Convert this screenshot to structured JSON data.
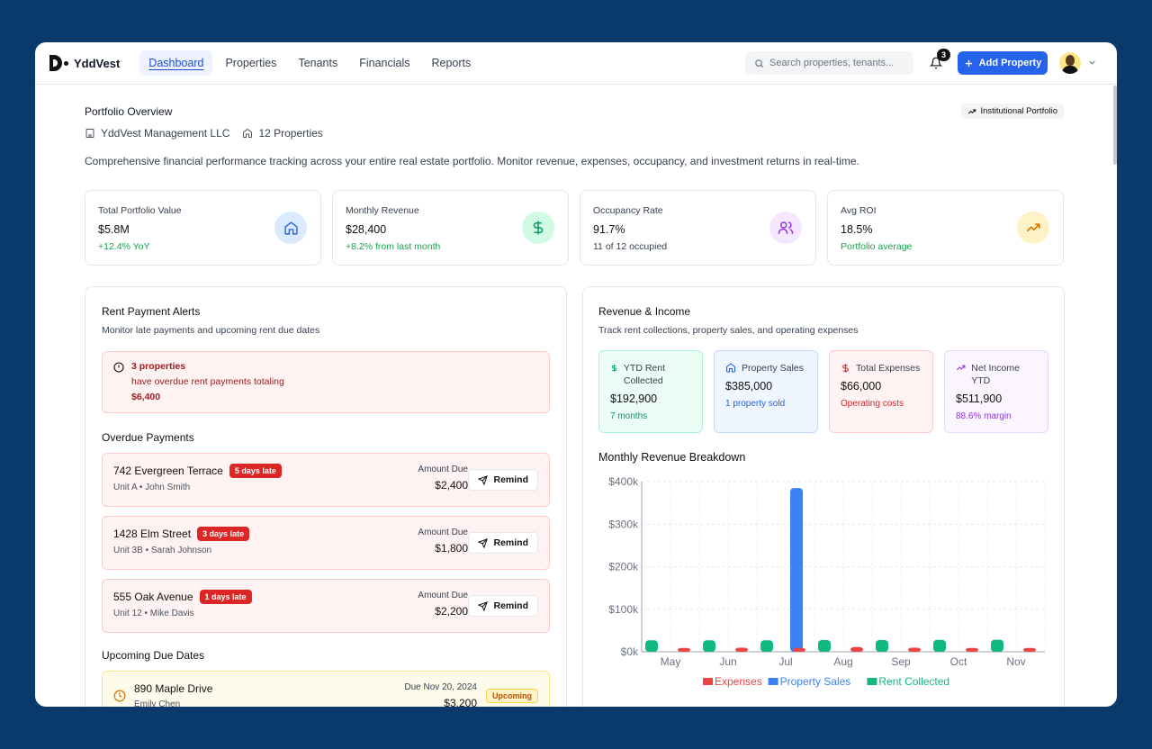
{
  "app": {
    "name": "YddVest"
  },
  "nav": {
    "items": [
      {
        "label": "Dashboard",
        "active": true
      },
      {
        "label": "Properties"
      },
      {
        "label": "Tenants"
      },
      {
        "label": "Financials"
      },
      {
        "label": "Reports"
      }
    ]
  },
  "search": {
    "placeholder": "Search properties, tenants..."
  },
  "notifications": {
    "count": "3"
  },
  "header_actions": {
    "add_property": "Add Property"
  },
  "overview": {
    "title": "Portfolio Overview",
    "pill": "Institutional Portfolio",
    "company": "YddVest Management LLC",
    "properties": "12 Properties",
    "description": "Comprehensive financial performance tracking across your entire real estate portfolio. Monitor revenue, expenses, occupancy, and investment returns in real-time."
  },
  "stats": [
    {
      "label": "Total Portfolio Value",
      "value": "$5.8M",
      "sub": "+12.4% YoY",
      "icon": "home-icon",
      "color": "#2563eb",
      "bg": "#dbeafe",
      "sub_color": "#16a34a"
    },
    {
      "label": "Monthly Revenue",
      "value": "$28,400",
      "sub": "+8.2% from last month",
      "icon": "dollar-icon",
      "color": "#059669",
      "bg": "#d1fae5",
      "sub_color": "#16a34a"
    },
    {
      "label": "Occupancy Rate",
      "value": "91.7%",
      "sub": "11 of 12 occupied",
      "icon": "users-icon",
      "color": "#9333ea",
      "bg": "#f3e8ff",
      "sub_color": "#374151"
    },
    {
      "label": "Avg ROI",
      "value": "18.5%",
      "sub": "Portfolio average",
      "icon": "trending-up-icon",
      "color": "#d97706",
      "bg": "#fef3c7",
      "sub_color": "#16a34a"
    }
  ],
  "alerts": {
    "title": "Rent Payment Alerts",
    "subtitle": "Monitor late payments and upcoming rent due dates",
    "banner": {
      "line1": "3 properties",
      "line2": "have overdue rent payments totaling",
      "line3": "$6,400"
    },
    "overdue_title": "Overdue Payments",
    "overdue": [
      {
        "address": "742 Evergreen Terrace",
        "late": "5 days late",
        "unit": "Unit A • John Smith",
        "amount_label": "Amount Due",
        "amount": "$2,400",
        "action": "Remind"
      },
      {
        "address": "1428 Elm Street",
        "late": "3 days late",
        "unit": "Unit 3B • Sarah Johnson",
        "amount_label": "Amount Due",
        "amount": "$1,800",
        "action": "Remind"
      },
      {
        "address": "555 Oak Avenue",
        "late": "1 days late",
        "unit": "Unit 12 • Mike Davis",
        "amount_label": "Amount Due",
        "amount": "$2,200",
        "action": "Remind"
      }
    ],
    "upcoming_title": "Upcoming Due Dates",
    "upcoming": [
      {
        "address": "890 Maple Drive",
        "tenant": "Emily Chen",
        "due": "Due Nov 20, 2024",
        "amount": "$3,200",
        "status": "Upcoming"
      }
    ]
  },
  "revenue": {
    "title": "Revenue & Income",
    "subtitle": "Track rent collections, property sales, and operating expenses",
    "kpis": [
      {
        "label": "YTD Rent Collected",
        "value": "$192,900",
        "sub": "7 months",
        "icon": "dollar-icon",
        "color": "#059669",
        "bg": "#ecfdf5",
        "border": "#a7f3d0"
      },
      {
        "label": "Property Sales",
        "value": "$385,000",
        "sub": "1 property sold",
        "icon": "home-icon",
        "color": "#2563eb",
        "bg": "#eff6ff",
        "border": "#bfdbfe"
      },
      {
        "label": "Total Expenses",
        "value": "$66,000",
        "sub": "Operating costs",
        "icon": "dollar-icon",
        "color": "#dc2626",
        "bg": "#fef2f2",
        "border": "#fecaca"
      },
      {
        "label": "Net Income YTD",
        "value": "$511,900",
        "sub": "88.6% margin",
        "icon": "trending-up-icon",
        "color": "#9333ea",
        "bg": "#faf5ff",
        "border": "#e9d5ff"
      }
    ],
    "chart_title": "Monthly Revenue Breakdown"
  },
  "chart_data": {
    "type": "bar",
    "title": "Monthly Revenue Breakdown",
    "categories": [
      "May",
      "Jun",
      "Jul",
      "Aug",
      "Sep",
      "Oct",
      "Nov"
    ],
    "series": [
      {
        "name": "Rent Collected",
        "color": "#10b981",
        "values": [
          27000,
          27000,
          27000,
          27500,
          27500,
          28000,
          28400
        ]
      },
      {
        "name": "Property Sales",
        "color": "#3b82f6",
        "values": [
          0,
          0,
          385000,
          0,
          0,
          0,
          0
        ]
      },
      {
        "name": "Expenses",
        "color": "#ef4444",
        "values": [
          9000,
          9500,
          9000,
          11000,
          9500,
          9000,
          9000
        ]
      }
    ],
    "legend_order": [
      "Expenses",
      "Property Sales",
      "Rent Collected"
    ],
    "yticks": [
      "$0k",
      "$100k",
      "$200k",
      "$300k",
      "$400k"
    ],
    "ylim": [
      0,
      400000
    ],
    "grid": true,
    "legend": "bottom"
  }
}
